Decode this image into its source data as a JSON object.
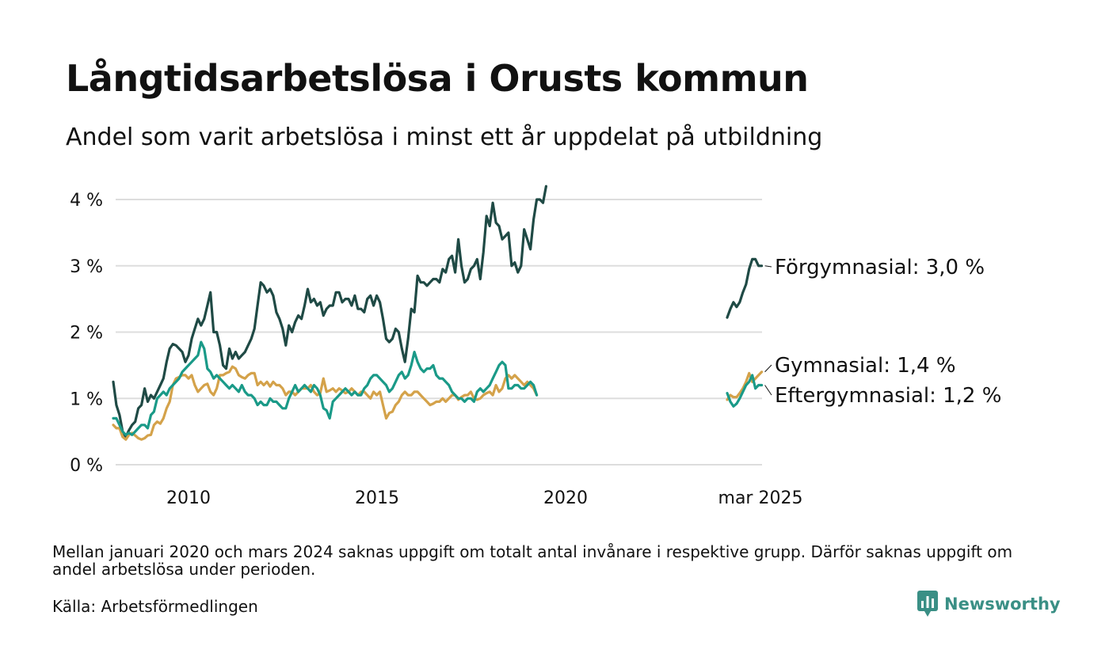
{
  "header": {
    "title": "Långtidsarbetslösa i Orusts kommun",
    "subtitle": "Andel som varit arbetslösa i minst ett år uppdelat på utbildning"
  },
  "footer": {
    "note": "Mellan januari 2020 och mars 2024 saknas uppgift om totalt antal invånare i respektive grupp. Därför saknas uppgift om andel arbetslösa under perioden.",
    "source": "Källa: Arbetsförmedlingen",
    "brand": "Newsworthy"
  },
  "colors": {
    "forgymnasial": "#1f4a45",
    "gymnasial": "#d4a24a",
    "eftergymnasial": "#1a9a88",
    "gridline": "#dddddd",
    "brand": "#3a8f85"
  },
  "chart_data": {
    "type": "line",
    "x_ticks": [
      "2010",
      "2015",
      "2020",
      "mar 2025"
    ],
    "y_ticks": [
      "0 %",
      "1 %",
      "2 %",
      "3 %",
      "4 %"
    ],
    "ylim": [
      0,
      4
    ],
    "grid": true,
    "legend": "inline-right",
    "x_segments": [
      {
        "start": "2008-01",
        "end": "2020-12"
      },
      {
        "start": "2024-03",
        "end": "2025-03"
      }
    ],
    "series": [
      {
        "name": "Förgymnasial",
        "label": "Förgymnasial: 3,0 %",
        "color": "#1f4a45",
        "segments": [
          {
            "start": "2008-01",
            "values": [
              1.25,
              0.9,
              0.75,
              0.5,
              0.42,
              0.52,
              0.6,
              0.65,
              0.85,
              0.9,
              1.15,
              0.95,
              1.05,
              1.0,
              1.1,
              1.2,
              1.3,
              1.55,
              1.75,
              1.82,
              1.8,
              1.75,
              1.7,
              1.55,
              1.65,
              1.9,
              2.05,
              2.2,
              2.1,
              2.2,
              2.4,
              2.6,
              2.0,
              2.0,
              1.8,
              1.5,
              1.45,
              1.75,
              1.6,
              1.7,
              1.6,
              1.65,
              1.7,
              1.8,
              1.9,
              2.05,
              2.4,
              2.75,
              2.7,
              2.6,
              2.65,
              2.55,
              2.3,
              2.2,
              2.05,
              1.8,
              2.1,
              2.0,
              2.15,
              2.25,
              2.2,
              2.4,
              2.65,
              2.45,
              2.5,
              2.4,
              2.45,
              2.25,
              2.35,
              2.4,
              2.4,
              2.6,
              2.6,
              2.45,
              2.5,
              2.5,
              2.4,
              2.55,
              2.35,
              2.35,
              2.3,
              2.5,
              2.55,
              2.4,
              2.55,
              2.45,
              2.2,
              1.9,
              1.85,
              1.9,
              2.05,
              2.0,
              1.75,
              1.55,
              1.9,
              2.35,
              2.3,
              2.85,
              2.75,
              2.75,
              2.7,
              2.75,
              2.8,
              2.8,
              2.75,
              2.95,
              2.9,
              3.1,
              3.15,
              2.9,
              3.4,
              3.0,
              2.75,
              2.8,
              2.95,
              3.0,
              3.1,
              2.8,
              3.2,
              3.75,
              3.6,
              3.95,
              3.65,
              3.6,
              3.4,
              3.45,
              3.5,
              3.0,
              3.05,
              2.9,
              3.0,
              3.55,
              3.4,
              3.25,
              3.7,
              4.0,
              4.0,
              3.95,
              4.2
            ]
          },
          {
            "start": "2024-03",
            "values": [
              2.22,
              2.35,
              2.45,
              2.38,
              2.45,
              2.6,
              2.72,
              2.95,
              3.1,
              3.1,
              3.0,
              3.0
            ]
          }
        ]
      },
      {
        "name": "Gymnasial",
        "label": "Gymnasial: 1,4 %",
        "color": "#d4a24a",
        "segments": [
          {
            "start": "2008-01",
            "values": [
              0.6,
              0.55,
              0.55,
              0.42,
              0.38,
              0.45,
              0.48,
              0.44,
              0.4,
              0.38,
              0.4,
              0.44,
              0.45,
              0.6,
              0.65,
              0.62,
              0.7,
              0.85,
              0.95,
              1.2,
              1.3,
              1.32,
              1.35,
              1.35,
              1.3,
              1.35,
              1.2,
              1.1,
              1.15,
              1.2,
              1.22,
              1.1,
              1.05,
              1.15,
              1.35,
              1.35,
              1.38,
              1.4,
              1.48,
              1.45,
              1.35,
              1.32,
              1.3,
              1.35,
              1.38,
              1.38,
              1.2,
              1.25,
              1.2,
              1.25,
              1.18,
              1.25,
              1.2,
              1.2,
              1.15,
              1.05,
              1.1,
              1.1,
              1.05,
              1.1,
              1.15,
              1.15,
              1.15,
              1.2,
              1.1,
              1.05,
              1.08,
              1.3,
              1.1,
              1.12,
              1.15,
              1.1,
              1.15,
              1.12,
              1.08,
              1.1,
              1.15,
              1.1,
              1.05,
              1.1,
              1.1,
              1.05,
              1.0,
              1.1,
              1.05,
              1.1,
              0.9,
              0.7,
              0.78,
              0.8,
              0.9,
              0.95,
              1.05,
              1.1,
              1.05,
              1.05,
              1.1,
              1.1,
              1.05,
              1.0,
              0.95,
              0.9,
              0.92,
              0.95,
              0.95,
              1.0,
              0.95,
              1.0,
              1.05,
              1.05,
              0.98,
              1.02,
              1.05,
              1.05,
              1.1,
              1.0,
              0.98,
              1.0,
              1.05,
              1.08,
              1.1,
              1.05,
              1.2,
              1.1,
              1.15,
              1.3,
              1.35,
              1.3,
              1.35,
              1.3,
              1.25,
              1.2,
              1.25,
              1.2,
              1.15,
              1.05
            ]
          },
          {
            "start": "2024-03",
            "values": [
              0.98,
              1.05,
              1.02,
              1.02,
              1.08,
              1.15,
              1.25,
              1.38,
              1.25,
              1.3,
              1.35,
              1.4
            ]
          }
        ]
      },
      {
        "name": "Eftergymnasial",
        "label": "Eftergymnasial: 1,2 %",
        "color": "#1a9a88",
        "segments": [
          {
            "start": "2008-01",
            "values": [
              0.7,
              0.7,
              0.6,
              0.5,
              0.45,
              0.48,
              0.45,
              0.5,
              0.55,
              0.6,
              0.6,
              0.55,
              0.75,
              0.8,
              1.0,
              1.05,
              1.1,
              1.05,
              1.15,
              1.2,
              1.25,
              1.3,
              1.4,
              1.45,
              1.5,
              1.55,
              1.6,
              1.65,
              1.85,
              1.75,
              1.45,
              1.4,
              1.3,
              1.35,
              1.3,
              1.25,
              1.2,
              1.15,
              1.2,
              1.15,
              1.1,
              1.2,
              1.1,
              1.05,
              1.05,
              1.0,
              0.9,
              0.95,
              0.9,
              0.9,
              1.0,
              0.95,
              0.95,
              0.9,
              0.85,
              0.85,
              1.0,
              1.1,
              1.2,
              1.1,
              1.15,
              1.2,
              1.15,
              1.1,
              1.2,
              1.15,
              1.05,
              0.85,
              0.82,
              0.7,
              0.95,
              1.0,
              1.05,
              1.1,
              1.15,
              1.1,
              1.05,
              1.1,
              1.05,
              1.05,
              1.15,
              1.2,
              1.3,
              1.35,
              1.35,
              1.3,
              1.25,
              1.2,
              1.1,
              1.15,
              1.25,
              1.35,
              1.4,
              1.3,
              1.35,
              1.5,
              1.7,
              1.55,
              1.45,
              1.4,
              1.45,
              1.45,
              1.5,
              1.35,
              1.3,
              1.3,
              1.25,
              1.2,
              1.1,
              1.05,
              1.0,
              1.0,
              0.95,
              1.0,
              1.0,
              0.95,
              1.1,
              1.15,
              1.1,
              1.15,
              1.2,
              1.3,
              1.4,
              1.5,
              1.55,
              1.5,
              1.15,
              1.15,
              1.2,
              1.2,
              1.15,
              1.15,
              1.2,
              1.25,
              1.2,
              1.05
            ]
          },
          {
            "start": "2024-03",
            "values": [
              1.08,
              0.95,
              0.88,
              0.92,
              1.0,
              1.1,
              1.2,
              1.25,
              1.35,
              1.15,
              1.2,
              1.2
            ]
          }
        ]
      }
    ]
  }
}
